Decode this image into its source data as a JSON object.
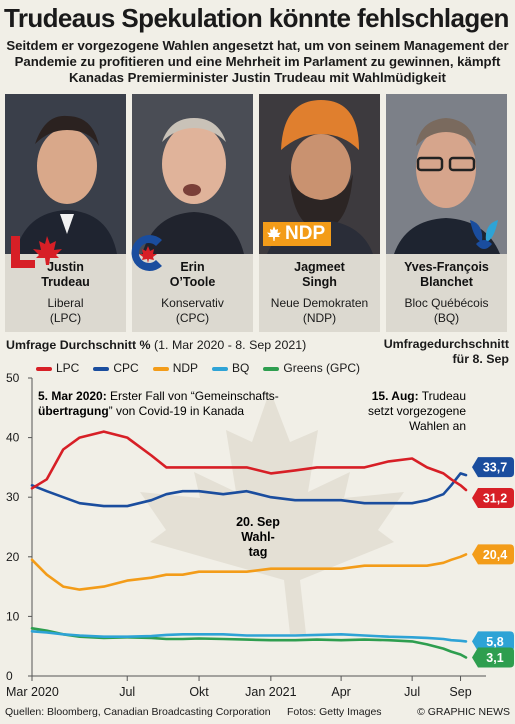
{
  "title": "Trudeaus Spekulation könnte fehlschlagen",
  "subtitle": "Seitdem er vorgezogene Wahlen angesetzt hat, um von seinem Management der Pandemie zu profitieren und eine Mehrheit im Parlament zu gewinnen, kämpft Kanadas Premierminister Justin Trudeau mit Wahlmüdigkeit",
  "leaders": [
    {
      "name_line1": "Justin",
      "name_line2": "Trudeau",
      "party_line1": "Liberal",
      "party_line2": "(LPC)",
      "color": "#d71f26",
      "logo": "liberal-maple-leaf-logo"
    },
    {
      "name_line1": "Erin",
      "name_line2": "O’Toole",
      "party_line1": "Konservativ",
      "party_line2": "(CPC)",
      "color": "#1a4d9e",
      "logo": "conservative-c-logo"
    },
    {
      "name_line1": "Jagmeet",
      "name_line2": "Singh",
      "party_line1": "Neue Demokraten",
      "party_line2": "(NDP)",
      "color": "#f39c19",
      "logo": "ndp-logo"
    },
    {
      "name_line1": "Yves-François",
      "name_line2": "Blanchet",
      "party_line1": "Bloc Québécois",
      "party_line2": "(BQ)",
      "color": "#2ea3d6",
      "logo": "bloc-quebecois-logo"
    }
  ],
  "logo_text": {
    "ndp": "NDP"
  },
  "chart_header": {
    "left_bold": "Umfrage Durchschnitt %",
    "left_rest": " (1. Mar 2020 - 8. Sep 2021)",
    "right_line1": "Umfragedurchschnitt",
    "right_line2": "für 8. Sep"
  },
  "annotations": {
    "covid_bold": "5. Mar 2020:",
    "covid_rest1": " Erster Fall von “Gemeinschafts-",
    "covid_bold2": "übertragung",
    "covid_rest2": "” von Covid-19 in Kanada",
    "aug_bold": "15. Aug:",
    "aug_rest1": " Trudeau",
    "aug_line2": "setzt vorgezogene",
    "aug_line3": "Wahlen an",
    "election_line1": "20. Sep",
    "election_line2": "Wahl-",
    "election_line3": "tag"
  },
  "chart_data": {
    "type": "line",
    "title": "Umfrage Durchschnitt %",
    "xlabel": "",
    "ylabel": "",
    "ylim": [
      0,
      50
    ],
    "yticks": [
      0,
      10,
      20,
      30,
      40,
      50
    ],
    "xlim": [
      "2020-03-01",
      "2021-09-08"
    ],
    "xticks": [
      {
        "date": "2020-03-01",
        "label": "Mar 2020"
      },
      {
        "date": "2020-07-01",
        "label": "Jul"
      },
      {
        "date": "2020-10-01",
        "label": "Okt"
      },
      {
        "date": "2021-01-01",
        "label": "Jan 2021"
      },
      {
        "date": "2021-04-01",
        "label": "Apr"
      },
      {
        "date": "2021-07-01",
        "label": "Jul"
      },
      {
        "date": "2021-09-01",
        "label": "Sep"
      }
    ],
    "legend_placement": "top",
    "grid": false,
    "series": [
      {
        "name": "LPC",
        "color": "#d71f26",
        "x": [
          "2020-03-01",
          "2020-03-20",
          "2020-04-10",
          "2020-05-01",
          "2020-06-01",
          "2020-07-01",
          "2020-08-01",
          "2020-08-20",
          "2020-09-10",
          "2020-10-01",
          "2020-11-01",
          "2020-12-01",
          "2021-01-01",
          "2021-02-01",
          "2021-03-01",
          "2021-04-01",
          "2021-05-01",
          "2021-06-01",
          "2021-07-01",
          "2021-07-20",
          "2021-08-10",
          "2021-08-20",
          "2021-09-01",
          "2021-09-08"
        ],
        "y": [
          31.5,
          33,
          38,
          40,
          41,
          40,
          37,
          35,
          35,
          35,
          35,
          35,
          34,
          34.5,
          35,
          35,
          35,
          36,
          36.5,
          35,
          34,
          33,
          32,
          31.2
        ]
      },
      {
        "name": "CPC",
        "color": "#1a4d9e",
        "x": [
          "2020-03-01",
          "2020-03-20",
          "2020-04-10",
          "2020-05-01",
          "2020-06-01",
          "2020-07-01",
          "2020-08-01",
          "2020-08-20",
          "2020-09-10",
          "2020-10-01",
          "2020-11-01",
          "2020-12-01",
          "2021-01-01",
          "2021-02-01",
          "2021-03-01",
          "2021-04-01",
          "2021-05-01",
          "2021-06-01",
          "2021-07-01",
          "2021-07-20",
          "2021-08-10",
          "2021-08-20",
          "2021-09-01",
          "2021-09-08"
        ],
        "y": [
          32,
          31,
          30,
          29,
          28.5,
          28.5,
          29.5,
          30.5,
          31,
          31,
          30.5,
          31,
          30,
          29.5,
          29.5,
          29.5,
          29,
          29,
          29,
          29.5,
          30.5,
          32,
          34,
          33.7
        ]
      },
      {
        "name": "NDP",
        "color": "#f39c19",
        "x": [
          "2020-03-01",
          "2020-03-20",
          "2020-04-10",
          "2020-05-01",
          "2020-06-01",
          "2020-07-01",
          "2020-08-01",
          "2020-08-20",
          "2020-09-10",
          "2020-10-01",
          "2020-11-01",
          "2020-12-01",
          "2021-01-01",
          "2021-02-01",
          "2021-03-01",
          "2021-04-01",
          "2021-05-01",
          "2021-06-01",
          "2021-07-01",
          "2021-07-20",
          "2021-08-10",
          "2021-08-20",
          "2021-09-01",
          "2021-09-08"
        ],
        "y": [
          19.5,
          17,
          15,
          14.5,
          15,
          16,
          16.5,
          17,
          17,
          17.5,
          17.5,
          17.5,
          18,
          18,
          18,
          18,
          18.5,
          18.5,
          18.5,
          18.5,
          19,
          19.5,
          20,
          20.4
        ]
      },
      {
        "name": "BQ",
        "color": "#2ea3d6",
        "x": [
          "2020-03-01",
          "2020-03-20",
          "2020-04-10",
          "2020-05-01",
          "2020-06-01",
          "2020-07-01",
          "2020-08-01",
          "2020-08-20",
          "2020-09-10",
          "2020-10-01",
          "2020-11-01",
          "2020-12-01",
          "2021-01-01",
          "2021-02-01",
          "2021-03-01",
          "2021-04-01",
          "2021-05-01",
          "2021-06-01",
          "2021-07-01",
          "2021-07-20",
          "2021-08-10",
          "2021-08-20",
          "2021-09-01",
          "2021-09-08"
        ],
        "y": [
          7.5,
          7.3,
          7,
          6.8,
          6.6,
          6.6,
          6.7,
          6.9,
          7,
          7,
          7,
          6.8,
          6.8,
          6.8,
          6.9,
          7,
          6.8,
          6.6,
          6.5,
          6.4,
          6.2,
          6,
          5.9,
          5.8
        ]
      },
      {
        "name": "Greens (GPC)",
        "color": "#2e9e4f",
        "x": [
          "2020-03-01",
          "2020-03-20",
          "2020-04-10",
          "2020-05-01",
          "2020-06-01",
          "2020-07-01",
          "2020-08-01",
          "2020-08-20",
          "2020-09-10",
          "2020-10-01",
          "2020-11-01",
          "2020-12-01",
          "2021-01-01",
          "2021-02-01",
          "2021-03-01",
          "2021-04-01",
          "2021-05-01",
          "2021-06-01",
          "2021-07-01",
          "2021-07-20",
          "2021-08-10",
          "2021-08-20",
          "2021-09-01",
          "2021-09-08"
        ],
        "y": [
          8,
          7.6,
          7,
          6.6,
          6.4,
          6.5,
          6.4,
          6.2,
          6.2,
          6.3,
          6.2,
          6.1,
          6,
          6,
          6.1,
          6,
          6.1,
          6,
          5.8,
          5.3,
          4.6,
          4.1,
          3.6,
          3.1
        ]
      }
    ],
    "end_labels": [
      {
        "series": "CPC",
        "value": "33,7",
        "color": "#1a4d9e"
      },
      {
        "series": "LPC",
        "value": "31,2",
        "color": "#d71f26"
      },
      {
        "series": "NDP",
        "value": "20,4",
        "color": "#f39c19"
      },
      {
        "series": "BQ",
        "value": "5,8",
        "color": "#2ea3d6"
      },
      {
        "series": "Greens (GPC)",
        "value": "3,1",
        "color": "#2e9e4f"
      }
    ]
  },
  "footer": {
    "sources": "Quellen: Bloomberg, Canadian Broadcasting Corporation",
    "photos": "Fotos: Getty Images",
    "copyright": "© GRAPHIC NEWS"
  }
}
